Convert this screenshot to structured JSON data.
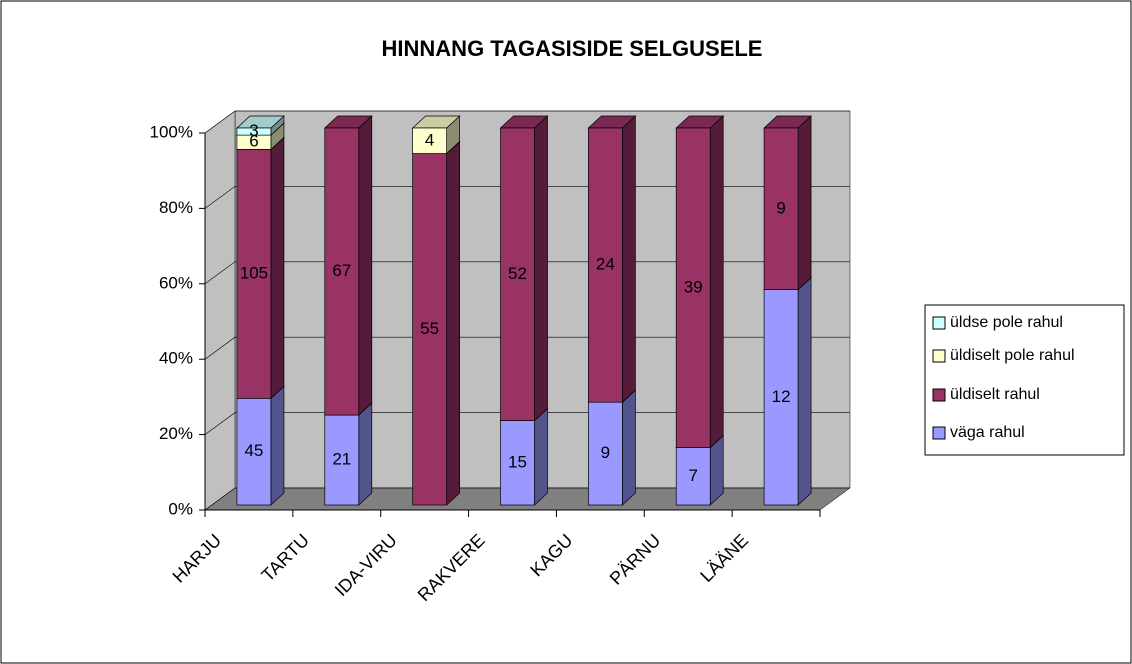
{
  "chart_data": {
    "type": "bar",
    "stacking": "percent",
    "title": "HINNANG TAGASISIDE SELGUSELE",
    "categories": [
      "HARJU",
      "TARTU",
      "IDA-VIRU",
      "RAKVERE",
      "KAGU",
      "PÄRNU",
      "LÄÄNE"
    ],
    "series": [
      {
        "name": "väga rahul",
        "color": "#9999ff",
        "values": [
          45,
          21,
          null,
          15,
          9,
          7,
          12
        ]
      },
      {
        "name": "üldiselt rahul",
        "color": "#993366",
        "values": [
          105,
          67,
          55,
          52,
          24,
          39,
          9
        ]
      },
      {
        "name": "üldiselt pole rahul",
        "color": "#ffffcc",
        "values": [
          6,
          null,
          4,
          null,
          null,
          null,
          null
        ]
      },
      {
        "name": "üldse pole rahul",
        "color": "#ccffff",
        "values": [
          3,
          null,
          null,
          null,
          null,
          null,
          null
        ]
      }
    ],
    "ylim": [
      0,
      100
    ],
    "yticks": [
      {
        "value": 0,
        "label": "0%"
      },
      {
        "value": 20,
        "label": "20%"
      },
      {
        "value": 40,
        "label": "40%"
      },
      {
        "value": 60,
        "label": "60%"
      },
      {
        "value": 80,
        "label": "80%"
      },
      {
        "value": 100,
        "label": "100%"
      }
    ],
    "grid": true,
    "legend": "right"
  }
}
